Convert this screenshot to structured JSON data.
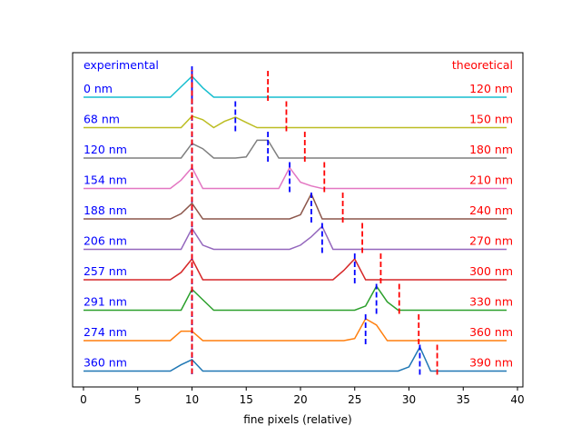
{
  "chart_data": {
    "type": "line",
    "xlabel": "fine pixels (relative)",
    "xlim": [
      -1,
      40.5
    ],
    "xticks": [
      0,
      5,
      10,
      15,
      20,
      25,
      30,
      35,
      40
    ],
    "header_left": "experimental",
    "header_right": "theoretical",
    "colors": {
      "experimental_text": "#0000ff",
      "theoretical_text": "#ff0000",
      "exp_marker": "#0000ff",
      "theo_marker": "#ff0000",
      "line_colors": [
        "#17becf",
        "#bcbd22",
        "#7f7f7f",
        "#e377c2",
        "#8c564b",
        "#9467bd",
        "#d62728",
        "#2ca02c",
        "#ff7f0e",
        "#1f77b4"
      ]
    },
    "reference_peak_x": 10,
    "rows": [
      {
        "exp": "0 nm",
        "theo": "120 nm",
        "exp_x": 10,
        "theo_x": 17,
        "peaks": [
          [
            10,
            1.0
          ],
          [
            9,
            0.5
          ],
          [
            11,
            0.45
          ]
        ]
      },
      {
        "exp": "68 nm",
        "theo": "150 nm",
        "exp_x": 14,
        "theo_x": 18.7,
        "peaks": [
          [
            10,
            0.55
          ],
          [
            11,
            0.38
          ],
          [
            14,
            0.5
          ],
          [
            13,
            0.3
          ],
          [
            15,
            0.25
          ]
        ]
      },
      {
        "exp": "120 nm",
        "theo": "180 nm",
        "exp_x": 17,
        "theo_x": 20.4,
        "peaks": [
          [
            10,
            0.7
          ],
          [
            11,
            0.45
          ],
          [
            17,
            0.85
          ],
          [
            16,
            0.85
          ],
          [
            15,
            0.05
          ]
        ]
      },
      {
        "exp": "154 nm",
        "theo": "210 nm",
        "exp_x": 19,
        "theo_x": 22.2,
        "peaks": [
          [
            10,
            1.0
          ],
          [
            9,
            0.4
          ],
          [
            19,
            1.0
          ],
          [
            20,
            0.3
          ],
          [
            21,
            0.12
          ]
        ]
      },
      {
        "exp": "188 nm",
        "theo": "240 nm",
        "exp_x": 21,
        "theo_x": 23.9,
        "peaks": [
          [
            10,
            0.75
          ],
          [
            9,
            0.25
          ],
          [
            21,
            1.2
          ],
          [
            20,
            0.2
          ]
        ]
      },
      {
        "exp": "206 nm",
        "theo": "270 nm",
        "exp_x": 22,
        "theo_x": 25.7,
        "peaks": [
          [
            10,
            1.0
          ],
          [
            11,
            0.2
          ],
          [
            22,
            1.1
          ],
          [
            21,
            0.6
          ],
          [
            20,
            0.2
          ]
        ]
      },
      {
        "exp": "257 nm",
        "theo": "300 nm",
        "exp_x": 25,
        "theo_x": 27.4,
        "peaks": [
          [
            10,
            1.0
          ],
          [
            9,
            0.35
          ],
          [
            25,
            1.0
          ],
          [
            24,
            0.45
          ]
        ]
      },
      {
        "exp": "291 nm",
        "theo": "330 nm",
        "exp_x": 27,
        "theo_x": 29.1,
        "peaks": [
          [
            10,
            1.0
          ],
          [
            11,
            0.5
          ],
          [
            27,
            1.15
          ],
          [
            28,
            0.4
          ],
          [
            26,
            0.2
          ]
        ]
      },
      {
        "exp": "274 nm",
        "theo": "360 nm",
        "exp_x": 26,
        "theo_x": 30.9,
        "peaks": [
          [
            10,
            0.45
          ],
          [
            9,
            0.45
          ],
          [
            26,
            1.05
          ],
          [
            27,
            0.75
          ],
          [
            25,
            0.1
          ]
        ]
      },
      {
        "exp": "360 nm",
        "theo": "390 nm",
        "exp_x": 31,
        "theo_x": 32.6,
        "peaks": [
          [
            10,
            0.55
          ],
          [
            9,
            0.3
          ],
          [
            31,
            1.15
          ],
          [
            30,
            0.2
          ]
        ]
      }
    ]
  }
}
